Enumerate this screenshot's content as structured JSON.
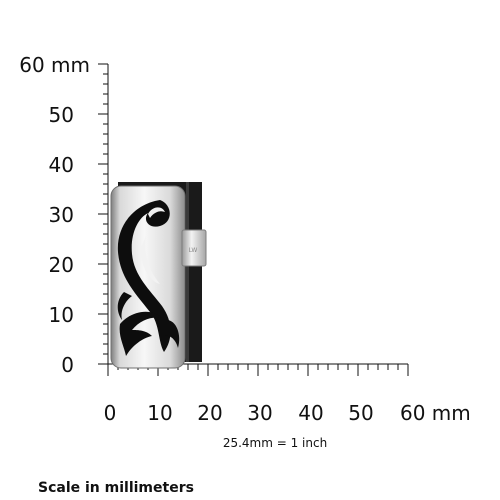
{
  "scale": {
    "unit": "mm",
    "y_ticks": [
      "0",
      "10",
      "20",
      "30",
      "40",
      "50",
      "60 mm"
    ],
    "x_ticks": [
      "0",
      "10",
      "20",
      "30",
      "40",
      "50",
      "60 mm"
    ],
    "conversion_note": "25.4mm = 1 inch",
    "caption": "Scale in millimeters"
  },
  "product": {
    "engraving": "LW",
    "description": "Silver slide with black tribal swirl on black leather band"
  },
  "colors": {
    "ink": "#111111",
    "leather": "#1a1a1a",
    "silver_light": "#f2f2f2",
    "silver_dark": "#8e8e8e"
  }
}
